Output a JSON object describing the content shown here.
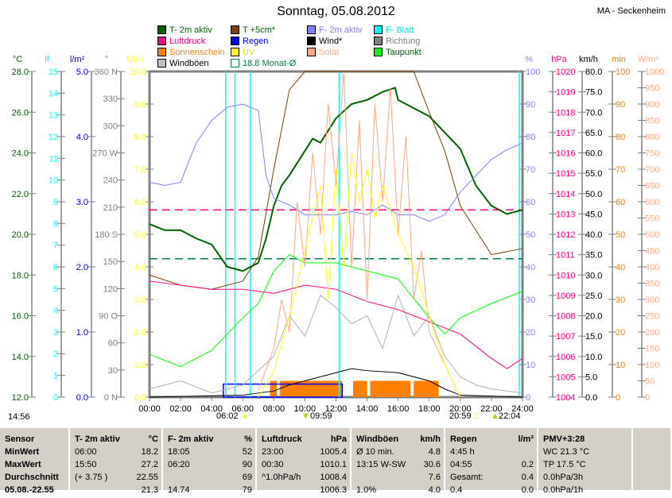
{
  "title": "Sonntag, 05.08.2012",
  "station": "MA - Seckenheim",
  "legend": [
    {
      "label": "T- 2m aktiv",
      "color": "#006400",
      "text": "#006400"
    },
    {
      "label": "T +5cm*",
      "color": "#804000",
      "text": "#006400"
    },
    {
      "label": "F- 2m aktiv",
      "color": "#8080ff",
      "text": "#8080ff"
    },
    {
      "label": "F- Blatt",
      "color": "#00ffff",
      "text": "#00e0e0"
    },
    {
      "label": "Luftdruck",
      "color": "#ff0080",
      "text": "#ff0080"
    },
    {
      "label": "Regen",
      "color": "#0000ff",
      "text": "#0000ff"
    },
    {
      "label": "Wind*",
      "color": "#000000",
      "text": "#000000"
    },
    {
      "label": "Richtung",
      "color": "#808080",
      "text": "#808080"
    },
    {
      "label": "Sonnenschein",
      "color": "#ff8000",
      "text": "#ff8000"
    },
    {
      "label": "UV",
      "color": "#ffff00",
      "text": "#e0e000"
    },
    {
      "label": "Solar",
      "color": "#ffa880",
      "text": "#ffa880"
    },
    {
      "label": "Taupunkt",
      "color": "#00ff00",
      "text": "#006400"
    },
    {
      "label": "Windböen",
      "color": "#c0c0c0",
      "text": "#000000"
    },
    {
      "label": "18.8 Monat-Ø",
      "color": "#008040",
      "text": "#008040"
    }
  ],
  "time_markers": {
    "left": "14:56",
    "sunrise": "06:02",
    "moon1": "09:59",
    "sunset": "20:59",
    "moon2": "22:04"
  },
  "chart_data": {
    "type": "line",
    "x_range": [
      0,
      24
    ],
    "x_ticks": [
      "00:00",
      "02:00",
      "04:00",
      "06:00",
      "08:00",
      "10:00",
      "12:00",
      "14:00",
      "16:00",
      "18:00",
      "20:00",
      "22:00",
      "24:00"
    ],
    "axes": [
      {
        "unit": "°C",
        "color": "#006400",
        "range": [
          12,
          28
        ],
        "ticks": [
          "12.0",
          "14.0",
          "16.0",
          "18.0",
          "20.0",
          "22.0",
          "24.0",
          "26.0",
          "28.0"
        ]
      },
      {
        "unit": "lf",
        "color": "#00ffff",
        "range": [
          0,
          15
        ],
        "ticks": [
          "0",
          "1",
          "2",
          "3",
          "4",
          "5",
          "6",
          "7",
          "8",
          "9",
          "10",
          "11",
          "12",
          "13",
          "14",
          "15"
        ]
      },
      {
        "unit": "l/m²",
        "color": "#0000ff",
        "range": [
          0,
          5
        ],
        "ticks": [
          "0.0",
          "1.0",
          "2.0",
          "3.0",
          "4.0",
          "5.0"
        ]
      },
      {
        "unit": "°",
        "color": "#808080",
        "range": [
          0,
          360
        ],
        "ticks": [
          "0   N",
          "30",
          "60",
          "90  O",
          "120",
          "150",
          "180 S",
          "210",
          "240",
          "270 W",
          "300",
          "330",
          "360 N"
        ]
      },
      {
        "unit": "UV-I",
        "color": "#ffff00",
        "range": [
          0,
          10
        ],
        "ticks": [
          "0.0",
          "1.0",
          "2.0",
          "3.0",
          "4.0",
          "5.0",
          "6.0",
          "7.0",
          "8.0",
          "9.0",
          "10.0"
        ]
      },
      {
        "unit": "%",
        "color": "#8080ff",
        "range": [
          0,
          100
        ],
        "ticks": [
          "0",
          "10",
          "20",
          "30",
          "40",
          "50",
          "60",
          "70",
          "80",
          "90",
          "100"
        ]
      },
      {
        "unit": "hPa",
        "color": "#ff0080",
        "range": [
          1004,
          1020
        ],
        "ticks": [
          "1004",
          "1005",
          "1006",
          "1007",
          "1008",
          "1009",
          "1010",
          "1011",
          "1012",
          "1013",
          "1014",
          "1015",
          "1016",
          "1017",
          "1018",
          "1019",
          "1020"
        ]
      },
      {
        "unit": "km/h",
        "color": "#000000",
        "range": [
          0,
          80
        ],
        "ticks": [
          "0.0",
          "5.0",
          "10.0",
          "15.0",
          "20.0",
          "25.0",
          "30.0",
          "35.0",
          "40.0",
          "45.0",
          "50.0",
          "55.0",
          "60.0",
          "65.0",
          "70.0",
          "75.0",
          "80.0"
        ]
      },
      {
        "unit": "min",
        "color": "#ff8000",
        "range": [
          0,
          100
        ],
        "ticks": [
          "0",
          "10",
          "20",
          "30",
          "40",
          "50",
          "60",
          "70",
          "80",
          "90",
          "100"
        ]
      },
      {
        "unit": "W/m²",
        "color": "#ffa880",
        "range": [
          0,
          1000
        ],
        "ticks": [
          "0",
          "50",
          "100",
          "150",
          "200",
          "250",
          "300",
          "350",
          "400",
          "450",
          "500",
          "550",
          "600",
          "650",
          "700",
          "750",
          "800",
          "850",
          "900",
          "950",
          "1000"
        ]
      }
    ],
    "averages": [
      {
        "name": "Monat-Ø",
        "axis": 0,
        "value": 18.8,
        "color": "#008040"
      },
      {
        "name": "Luftdruck-Ø",
        "axis": 6,
        "value": 1013.2,
        "color": "#ff0080"
      }
    ],
    "series": [
      {
        "name": "T- 2m aktiv",
        "axis": 0,
        "color": "#006400",
        "width": 2,
        "x": [
          0,
          1,
          2,
          3,
          4,
          5,
          6,
          7,
          7.5,
          8,
          8.5,
          9,
          10,
          10.5,
          11,
          12,
          13,
          14,
          15,
          15.8,
          16,
          17,
          18,
          19,
          20,
          21,
          22,
          23,
          24
        ],
        "y": [
          20.5,
          20.2,
          20.2,
          19.8,
          19.5,
          18.4,
          18.2,
          18.6,
          19.8,
          21.4,
          22.4,
          22.9,
          24.1,
          24.7,
          24.5,
          25.7,
          26.4,
          26.6,
          27.0,
          27.2,
          26.6,
          26.2,
          25.8,
          25.0,
          24.2,
          22.4,
          21.4,
          21.0,
          21.2
        ]
      },
      {
        "name": "T +5cm*",
        "axis": 0,
        "color": "#804000",
        "width": 1,
        "x": [
          0,
          2,
          4,
          6,
          7,
          8,
          9,
          10,
          12,
          14,
          17,
          18,
          19,
          20,
          21,
          22,
          24
        ],
        "y": [
          18.0,
          17.5,
          17.3,
          17.7,
          18.9,
          23.2,
          27.1,
          28.5,
          28.5,
          28.5,
          28.0,
          26.0,
          24.1,
          21.4,
          20.2,
          19.0,
          19.3
        ]
      },
      {
        "name": "F- 2m aktiv",
        "axis": 5,
        "color": "#8080ff",
        "width": 1,
        "x": [
          0,
          1,
          2,
          3,
          4,
          5,
          6,
          7,
          7.5,
          8,
          9,
          10,
          11,
          12,
          13,
          14,
          15,
          16,
          17,
          18,
          19,
          20,
          21,
          22,
          23,
          24
        ],
        "y": [
          66,
          65,
          66,
          78,
          85,
          89,
          90,
          88,
          68,
          61,
          59,
          56,
          56,
          56,
          57,
          56,
          59,
          56,
          56,
          54,
          56,
          63,
          68,
          73,
          76,
          78
        ]
      },
      {
        "name": "Luftdruck",
        "axis": 6,
        "color": "#ff0080",
        "width": 1,
        "x": [
          0,
          2,
          4,
          6,
          8,
          10,
          12,
          14,
          16,
          18,
          20,
          22,
          23,
          24
        ],
        "y": [
          1009.7,
          1009.5,
          1009.3,
          1009.3,
          1009.1,
          1009.5,
          1009.3,
          1008.7,
          1008.3,
          1007.7,
          1007.1,
          1005.9,
          1005.4,
          1005.9
        ]
      },
      {
        "name": "Taupunkt",
        "axis": 0,
        "color": "#00ff00",
        "width": 1,
        "x": [
          0,
          2,
          4,
          6,
          7,
          8,
          9,
          10,
          12,
          14,
          16,
          18,
          19,
          20,
          22,
          24
        ],
        "y": [
          14.1,
          13.5,
          14.3,
          15.9,
          16.6,
          18.2,
          19.0,
          18.6,
          18.6,
          18.2,
          17.8,
          15.9,
          15.1,
          15.9,
          16.6,
          17.2
        ]
      },
      {
        "name": "Wind*",
        "axis": 7,
        "color": "#000000",
        "width": 1,
        "x": [
          0,
          6,
          8,
          9,
          10,
          11,
          12,
          13,
          14,
          16,
          18,
          19,
          20,
          24
        ],
        "y": [
          0,
          0.5,
          1.5,
          3,
          4,
          5,
          6,
          7,
          6.5,
          6,
          4,
          2,
          0.5,
          0
        ]
      },
      {
        "name": "Windböen",
        "axis": 7,
        "color": "#b0b0b0",
        "width": 1,
        "x": [
          0,
          2,
          4,
          6,
          8,
          9,
          10,
          11,
          12,
          13,
          14,
          15,
          16,
          17,
          18,
          19,
          20,
          21,
          22,
          24
        ],
        "y": [
          2,
          4,
          1,
          3,
          10,
          20,
          15,
          25,
          22,
          18,
          20,
          12,
          25,
          15,
          20,
          10,
          5,
          3,
          2,
          1
        ]
      },
      {
        "name": "Solar",
        "axis": 9,
        "color": "#ffa880",
        "width": 1,
        "x": [
          7,
          8,
          8.5,
          9,
          9.5,
          10,
          10.5,
          11,
          11.5,
          12,
          12.5,
          13,
          13.5,
          14,
          14.5,
          15,
          15.5,
          16,
          16.5,
          17,
          17.5,
          18,
          19,
          20
        ],
        "y": [
          20,
          150,
          300,
          200,
          600,
          400,
          750,
          500,
          900,
          650,
          1000,
          400,
          850,
          300,
          900,
          600,
          950,
          500,
          800,
          300,
          450,
          200,
          100,
          0
        ]
      },
      {
        "name": "UV",
        "axis": 4,
        "color": "#ffff00",
        "width": 1,
        "x": [
          7,
          8,
          9,
          10,
          10.5,
          11,
          11.5,
          12,
          12.5,
          13,
          13.5,
          14,
          14.5,
          15,
          16,
          17,
          18,
          19,
          20
        ],
        "y": [
          0,
          0.8,
          2.5,
          4.5,
          5.5,
          6.5,
          3,
          7,
          4,
          7.5,
          6,
          7,
          5.5,
          6.5,
          5,
          4,
          2.5,
          1,
          0
        ]
      }
    ],
    "sunshine_intervals": [
      [
        7.75,
        8.2
      ],
      [
        8.4,
        12.4
      ],
      [
        13.1,
        14.0
      ],
      [
        14.2,
        16.8
      ],
      [
        17.0,
        18.6
      ]
    ],
    "sunshine_value": 5,
    "rain": {
      "start": 4.75,
      "end": 12.4,
      "value": 0.2
    },
    "leaf_wet_spikes": [
      4.9,
      5.5,
      6.5,
      12.2,
      23.8
    ]
  },
  "table": {
    "columns": [
      {
        "header": [
          "Sensor",
          ""
        ],
        "rows": [
          [
            "MinWert",
            ""
          ],
          [
            "MaxWert",
            ""
          ],
          [
            "Durchschnitt",
            ""
          ],
          [
            "05.08.-22.55",
            ""
          ]
        ]
      },
      {
        "header": [
          "T- 2m aktiv",
          "°C"
        ],
        "rows": [
          [
            "06:00",
            "18.2"
          ],
          [
            "15:50",
            "27.2"
          ],
          [
            "(+ 3.75 )",
            "22.55"
          ],
          [
            "",
            "21.3"
          ]
        ]
      },
      {
        "header": [
          "F- 2m aktiv",
          "%"
        ],
        "rows": [
          [
            "18:05",
            "52"
          ],
          [
            "06:20",
            "90"
          ],
          [
            "",
            "69"
          ],
          [
            "14.74",
            "79"
          ]
        ]
      },
      {
        "header": [
          "Luftdruck",
          "hPa"
        ],
        "rows": [
          [
            "23:00",
            "1005.4"
          ],
          [
            "00:30",
            "1010.1"
          ],
          [
            "^1.0hPa/h",
            "1008.4"
          ],
          [
            "",
            "1006.3"
          ]
        ]
      },
      {
        "header": [
          "Windböen",
          "km/h"
        ],
        "rows": [
          [
            "Ø 10 min.",
            "4.8"
          ],
          [
            "13:15   W-SW",
            "30.6"
          ],
          [
            "",
            "7.6"
          ],
          [
            "1.0%",
            "4.0"
          ]
        ]
      },
      {
        "header": [
          "Regen",
          "l/m²"
        ],
        "rows": [
          [
            "4:45 h",
            ""
          ],
          [
            "04:55",
            "0.2"
          ],
          [
            "Gesamt:",
            "0.4"
          ],
          [
            "0.4",
            "0.0"
          ]
        ]
      },
      {
        "header": [
          "PMV+3:28",
          ""
        ],
        "rows": [
          [
            "WC 21.3 °C",
            ""
          ],
          [
            "TP 17.5 °C",
            ""
          ],
          [
            "0.0hPa/3h",
            ""
          ],
          [
            "0.0hPa/1h",
            ""
          ]
        ]
      },
      {
        "header": [
          "",
          ""
        ],
        "rows": []
      }
    ]
  }
}
